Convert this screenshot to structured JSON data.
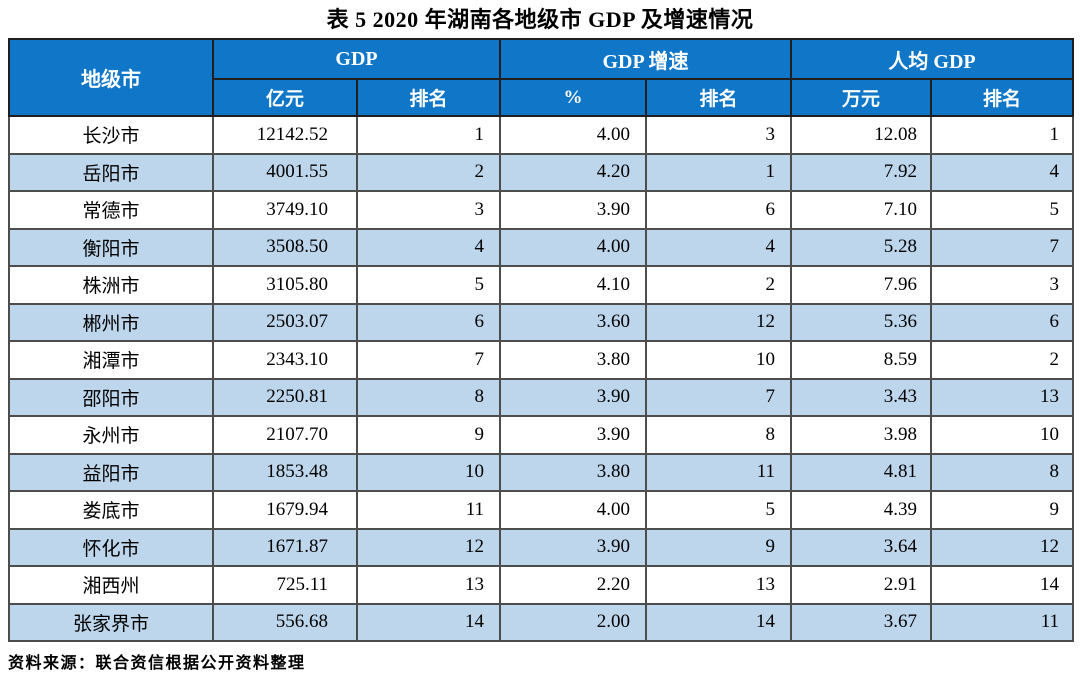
{
  "page": {
    "title": "表 5  2020 年湖南各地级市 GDP 及增速情况",
    "source_note": "资料来源：联合资信根据公开资料整理"
  },
  "table": {
    "header": {
      "city": "地级市",
      "groups": [
        {
          "label": "GDP",
          "unit": "亿元",
          "rank": "排名"
        },
        {
          "label": "GDP 增速",
          "unit": "%",
          "rank": "排名"
        },
        {
          "label": "人均 GDP",
          "unit": "万元",
          "rank": "排名"
        }
      ]
    },
    "rows": [
      {
        "city": "长沙市",
        "gdp": "12142.52",
        "gdp_rank": "1",
        "growth": "4.00",
        "growth_rank": "3",
        "per_capita": "12.08",
        "per_capita_rank": "1"
      },
      {
        "city": "岳阳市",
        "gdp": "4001.55",
        "gdp_rank": "2",
        "growth": "4.20",
        "growth_rank": "1",
        "per_capita": "7.92",
        "per_capita_rank": "4"
      },
      {
        "city": "常德市",
        "gdp": "3749.10",
        "gdp_rank": "3",
        "growth": "3.90",
        "growth_rank": "6",
        "per_capita": "7.10",
        "per_capita_rank": "5"
      },
      {
        "city": "衡阳市",
        "gdp": "3508.50",
        "gdp_rank": "4",
        "growth": "4.00",
        "growth_rank": "4",
        "per_capita": "5.28",
        "per_capita_rank": "7"
      },
      {
        "city": "株洲市",
        "gdp": "3105.80",
        "gdp_rank": "5",
        "growth": "4.10",
        "growth_rank": "2",
        "per_capita": "7.96",
        "per_capita_rank": "3"
      },
      {
        "city": "郴州市",
        "gdp": "2503.07",
        "gdp_rank": "6",
        "growth": "3.60",
        "growth_rank": "12",
        "per_capita": "5.36",
        "per_capita_rank": "6"
      },
      {
        "city": "湘潭市",
        "gdp": "2343.10",
        "gdp_rank": "7",
        "growth": "3.80",
        "growth_rank": "10",
        "per_capita": "8.59",
        "per_capita_rank": "2"
      },
      {
        "city": "邵阳市",
        "gdp": "2250.81",
        "gdp_rank": "8",
        "growth": "3.90",
        "growth_rank": "7",
        "per_capita": "3.43",
        "per_capita_rank": "13"
      },
      {
        "city": "永州市",
        "gdp": "2107.70",
        "gdp_rank": "9",
        "growth": "3.90",
        "growth_rank": "8",
        "per_capita": "3.98",
        "per_capita_rank": "10"
      },
      {
        "city": "益阳市",
        "gdp": "1853.48",
        "gdp_rank": "10",
        "growth": "3.80",
        "growth_rank": "11",
        "per_capita": "4.81",
        "per_capita_rank": "8"
      },
      {
        "city": "娄底市",
        "gdp": "1679.94",
        "gdp_rank": "11",
        "growth": "4.00",
        "growth_rank": "5",
        "per_capita": "4.39",
        "per_capita_rank": "9"
      },
      {
        "city": "怀化市",
        "gdp": "1671.87",
        "gdp_rank": "12",
        "growth": "3.90",
        "growth_rank": "9",
        "per_capita": "3.64",
        "per_capita_rank": "12"
      },
      {
        "city": "湘西州",
        "gdp": "725.11",
        "gdp_rank": "13",
        "growth": "2.20",
        "growth_rank": "13",
        "per_capita": "2.91",
        "per_capita_rank": "14"
      },
      {
        "city": "张家界市",
        "gdp": "556.68",
        "gdp_rank": "14",
        "growth": "2.00",
        "growth_rank": "14",
        "per_capita": "3.67",
        "per_capita_rank": "11"
      }
    ]
  },
  "colors": {
    "header_bg": "#1076C8",
    "header_text": "#FFFFFF",
    "row_bg": "#FFFFFF",
    "row_alt_bg": "#BDD6EC",
    "border": "#4d4d4d",
    "text": "#000000"
  }
}
